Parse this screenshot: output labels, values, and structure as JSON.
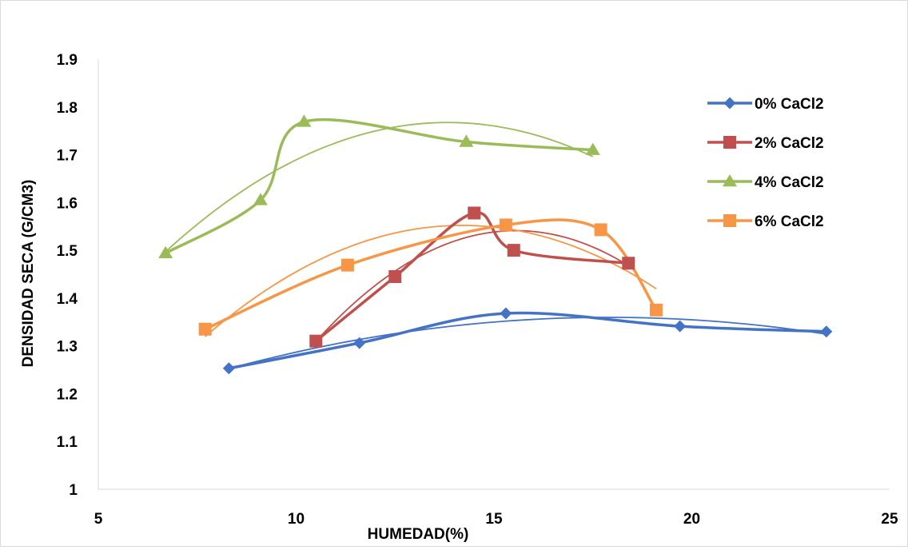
{
  "chart_data": {
    "type": "scatter",
    "title": "",
    "xlabel": "HUMEDAD(%)",
    "ylabel": "DENSIDAD SECA (G/CM3)",
    "xlim": [
      5,
      25
    ],
    "ylim": [
      1,
      1.9
    ],
    "x_ticks": [
      "5",
      "10",
      "15",
      "20",
      "25"
    ],
    "y_ticks": [
      "1",
      "1.1",
      "1.2",
      "1.3",
      "1.4",
      "1.5",
      "1.6",
      "1.7",
      "1.8",
      "1.9"
    ],
    "grid": false,
    "legend_position": "right",
    "trendline": "polynomial",
    "series": [
      {
        "name": "0% CaCl2",
        "color": "#4472c4",
        "marker": "diamond",
        "x": [
          8.3,
          11.6,
          15.3,
          19.7,
          23.4
        ],
        "y": [
          1.253,
          1.306,
          1.368,
          1.341,
          1.33
        ]
      },
      {
        "name": "2% CaCl2",
        "color": "#c0504d",
        "marker": "square",
        "x": [
          10.5,
          12.5,
          14.5,
          15.5,
          18.4
        ],
        "y": [
          1.31,
          1.445,
          1.578,
          1.5,
          1.473
        ]
      },
      {
        "name": "4% CaCl2",
        "color": "#9bbb59",
        "marker": "triangle",
        "x": [
          6.7,
          9.1,
          10.2,
          14.3,
          17.5
        ],
        "y": [
          1.494,
          1.605,
          1.769,
          1.727,
          1.71
        ]
      },
      {
        "name": "6% CaCl2",
        "color": "#f79646",
        "marker": "square",
        "x": [
          7.7,
          11.3,
          15.3,
          17.7,
          19.1
        ],
        "y": [
          1.335,
          1.469,
          1.553,
          1.543,
          1.375
        ]
      }
    ]
  }
}
